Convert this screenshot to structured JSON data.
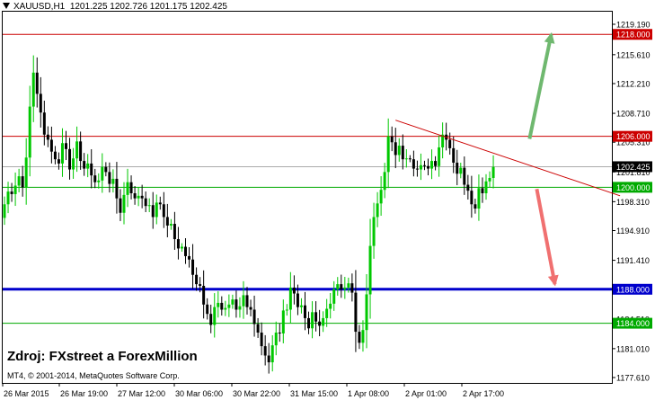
{
  "chart_header": {
    "symbol_timeframe": "XAUUSD,H1",
    "ohlc": "1201.225 1202.726 1201.175 1202.425"
  },
  "annotations": {
    "source": "Zdroj: FXstreet a ForexMillion",
    "copyright": "MT4, © 2001-2014, MetaQuotes Software Corp."
  },
  "colors": {
    "background": "#ffffff",
    "bull_candle": "#00c800",
    "bear_candle": "#000000",
    "resistance_line": "#cc0000",
    "support_line": "#00aa00",
    "key_support_line": "#0000cc",
    "bid_line": "#aaaaaa",
    "arrow_up": "#6fb86f",
    "arrow_down": "#f07070"
  },
  "chart_data": {
    "type": "candlestick",
    "symbol": "XAUUSD",
    "timeframe": "H1",
    "y_ticks": [
      "1219.190",
      "1215.610",
      "1212.210",
      "1208.710",
      "1205.310",
      "1201.810",
      "1198.310",
      "1194.910",
      "1191.410",
      "1187.910",
      "1184.510",
      "1181.010",
      "1177.610"
    ],
    "ylim": [
      1176.6,
      1221.0
    ],
    "x_ticks": [
      "26 Mar 2015",
      "26 Mar 19:00",
      "27 Mar 12:00",
      "30 Mar 06:00",
      "30 Mar 22:00",
      "31 Mar 15:00",
      "1 Apr 08:00",
      "2 Apr 01:00",
      "2 Apr 17:00"
    ],
    "current_price": "1202.425",
    "levels": [
      {
        "label": "1218.000",
        "value": 1218.0,
        "kind": "resistance"
      },
      {
        "label": "1206.000",
        "value": 1206.0,
        "kind": "resistance"
      },
      {
        "label": "1200.000",
        "value": 1200.0,
        "kind": "support"
      },
      {
        "label": "1188.000",
        "value": 1188.0,
        "kind": "key_support"
      },
      {
        "label": "1184.000",
        "value": 1184.0,
        "kind": "support"
      }
    ],
    "trendline": {
      "from_bar": 108,
      "from_price": 1207.9,
      "to_bar": 170,
      "to_price": 1199.0
    },
    "arrows": [
      {
        "direction": "up",
        "from_bar": 145,
        "from_price": 1205.7,
        "to_bar": 151,
        "to_price": 1218.0
      },
      {
        "direction": "down",
        "from_bar": 147,
        "from_price": 1199.8,
        "to_bar": 152,
        "to_price": 1188.6
      }
    ],
    "closes": [
      1198.0,
      1199.5,
      1199.2,
      1200.2,
      1201.3,
      1200.0,
      1203.5,
      1209.5,
      1213.5,
      1211.0,
      1208.8,
      1206.2,
      1205.6,
      1204.2,
      1203.3,
      1202.8,
      1205.2,
      1204.5,
      1202.1,
      1203.4,
      1205.4,
      1203.1,
      1202.2,
      1202.8,
      1201.4,
      1200.6,
      1200.8,
      1202.4,
      1201.8,
      1200.4,
      1201.0,
      1198.7,
      1197.0,
      1199.1,
      1200.6,
      1199.3,
      1198.7,
      1199.0,
      1198.7,
      1197.8,
      1197.9,
      1196.5,
      1198.2,
      1198.0,
      1196.5,
      1195.5,
      1195.7,
      1193.9,
      1192.8,
      1193.0,
      1191.9,
      1191.5,
      1189.7,
      1188.6,
      1188.4,
      1186.2,
      1185.1,
      1183.8,
      1185.9,
      1186.4,
      1185.6,
      1185.8,
      1186.2,
      1186.8,
      1185.6,
      1186.0,
      1187.3,
      1185.9,
      1185.6,
      1183.9,
      1182.9,
      1181.3,
      1180.2,
      1179.4,
      1181.4,
      1182.9,
      1182.8,
      1185.5,
      1185.6,
      1188.2,
      1187.5,
      1185.9,
      1186.1,
      1184.6,
      1183.4,
      1185.3,
      1184.2,
      1183.7,
      1184.6,
      1185.7,
      1186.3,
      1188.0,
      1188.6,
      1188.0,
      1188.2,
      1188.7,
      1187.6,
      1183.0,
      1181.7,
      1183.2,
      1187.4,
      1193.1,
      1196.5,
      1198.1,
      1199.7,
      1201.8,
      1206.0,
      1205.3,
      1203.8,
      1204.9,
      1203.3,
      1203.4,
      1203.3,
      1202.2,
      1202.1,
      1202.6,
      1202.5,
      1202.2,
      1203.1,
      1202.5,
      1204.7,
      1206.2,
      1205.6,
      1204.6,
      1202.9,
      1201.6,
      1202.3,
      1200.3,
      1199.6,
      1198.0,
      1197.5,
      1199.9,
      1199.3,
      1200.7,
      1201.1,
      1202.4
    ]
  }
}
